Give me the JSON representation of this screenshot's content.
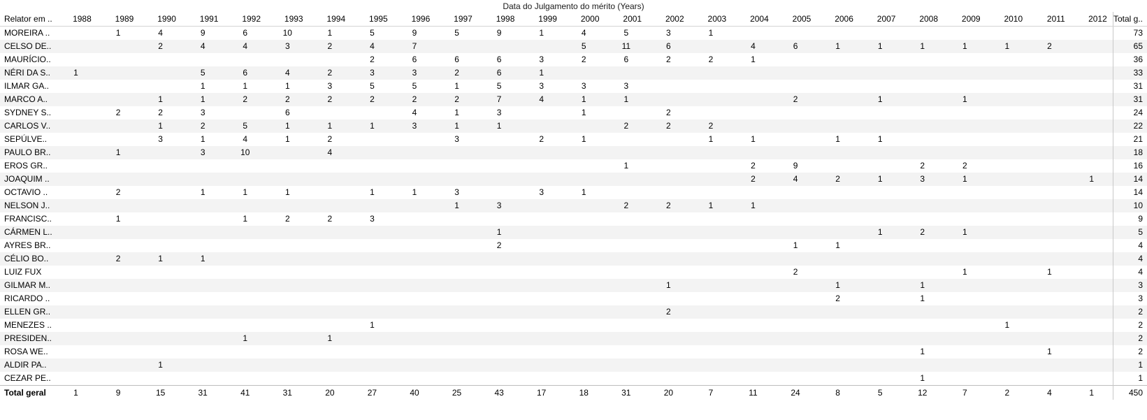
{
  "chart_data": {
    "type": "table",
    "title": "Data do Julgamento do mérito (Years)",
    "row_header": "Relator em ..",
    "total_header": "Total g..",
    "total_row_label": "Total geral",
    "columns": [
      "1988",
      "1989",
      "1990",
      "1991",
      "1992",
      "1993",
      "1994",
      "1995",
      "1996",
      "1997",
      "1998",
      "1999",
      "2000",
      "2001",
      "2002",
      "2003",
      "2004",
      "2005",
      "2006",
      "2007",
      "2008",
      "2009",
      "2010",
      "2011",
      "2012"
    ],
    "rows": [
      {
        "label": "MOREIRA ..",
        "values": [
          null,
          1,
          4,
          9,
          6,
          10,
          1,
          5,
          9,
          5,
          9,
          1,
          4,
          5,
          3,
          1,
          null,
          null,
          null,
          null,
          null,
          null,
          null,
          null,
          null
        ],
        "total": 73
      },
      {
        "label": "CELSO DE..",
        "values": [
          null,
          null,
          2,
          4,
          4,
          3,
          2,
          4,
          7,
          null,
          null,
          null,
          5,
          11,
          6,
          null,
          4,
          6,
          1,
          1,
          1,
          1,
          1,
          2,
          null
        ],
        "total": 65
      },
      {
        "label": "MAURÍCIO..",
        "values": [
          null,
          null,
          null,
          null,
          null,
          null,
          null,
          2,
          6,
          6,
          6,
          3,
          2,
          6,
          2,
          2,
          1,
          null,
          null,
          null,
          null,
          null,
          null,
          null,
          null
        ],
        "total": 36
      },
      {
        "label": "NÉRI DA S..",
        "values": [
          1,
          null,
          null,
          5,
          6,
          4,
          2,
          3,
          3,
          2,
          6,
          1,
          null,
          null,
          null,
          null,
          null,
          null,
          null,
          null,
          null,
          null,
          null,
          null,
          null
        ],
        "total": 33
      },
      {
        "label": "ILMAR GA..",
        "values": [
          null,
          null,
          null,
          1,
          1,
          1,
          3,
          5,
          5,
          1,
          5,
          3,
          3,
          3,
          null,
          null,
          null,
          null,
          null,
          null,
          null,
          null,
          null,
          null,
          null
        ],
        "total": 31
      },
      {
        "label": "MARCO A..",
        "values": [
          null,
          null,
          1,
          1,
          2,
          2,
          2,
          2,
          2,
          2,
          7,
          4,
          1,
          1,
          null,
          null,
          null,
          2,
          null,
          1,
          null,
          1,
          null,
          null,
          null
        ],
        "total": 31
      },
      {
        "label": "SYDNEY S..",
        "values": [
          null,
          2,
          2,
          3,
          null,
          6,
          null,
          null,
          4,
          1,
          3,
          null,
          1,
          null,
          2,
          null,
          null,
          null,
          null,
          null,
          null,
          null,
          null,
          null,
          null
        ],
        "total": 24
      },
      {
        "label": "CARLOS V..",
        "values": [
          null,
          null,
          1,
          2,
          5,
          1,
          1,
          1,
          3,
          1,
          1,
          null,
          null,
          2,
          2,
          2,
          null,
          null,
          null,
          null,
          null,
          null,
          null,
          null,
          null
        ],
        "total": 22
      },
      {
        "label": "SEPÚLVE..",
        "values": [
          null,
          null,
          3,
          1,
          4,
          1,
          2,
          null,
          null,
          3,
          null,
          2,
          1,
          null,
          null,
          1,
          1,
          null,
          1,
          1,
          null,
          null,
          null,
          null,
          null
        ],
        "total": 21
      },
      {
        "label": "PAULO BR..",
        "values": [
          null,
          1,
          null,
          3,
          10,
          null,
          4,
          null,
          null,
          null,
          null,
          null,
          null,
          null,
          null,
          null,
          null,
          null,
          null,
          null,
          null,
          null,
          null,
          null,
          null
        ],
        "total": 18
      },
      {
        "label": "EROS GR..",
        "values": [
          null,
          null,
          null,
          null,
          null,
          null,
          null,
          null,
          null,
          null,
          null,
          null,
          null,
          1,
          null,
          null,
          2,
          9,
          null,
          null,
          2,
          2,
          null,
          null,
          null
        ],
        "total": 16
      },
      {
        "label": "JOAQUIM ..",
        "values": [
          null,
          null,
          null,
          null,
          null,
          null,
          null,
          null,
          null,
          null,
          null,
          null,
          null,
          null,
          null,
          null,
          2,
          4,
          2,
          1,
          3,
          1,
          null,
          null,
          1
        ],
        "total": 14
      },
      {
        "label": "OCTAVIO ..",
        "values": [
          null,
          2,
          null,
          1,
          1,
          1,
          null,
          1,
          1,
          3,
          null,
          3,
          1,
          null,
          null,
          null,
          null,
          null,
          null,
          null,
          null,
          null,
          null,
          null,
          null
        ],
        "total": 14
      },
      {
        "label": "NELSON J..",
        "values": [
          null,
          null,
          null,
          null,
          null,
          null,
          null,
          null,
          null,
          1,
          3,
          null,
          null,
          2,
          2,
          1,
          1,
          null,
          null,
          null,
          null,
          null,
          null,
          null,
          null
        ],
        "total": 10
      },
      {
        "label": "FRANCISC..",
        "values": [
          null,
          1,
          null,
          null,
          1,
          2,
          2,
          3,
          null,
          null,
          null,
          null,
          null,
          null,
          null,
          null,
          null,
          null,
          null,
          null,
          null,
          null,
          null,
          null,
          null
        ],
        "total": 9
      },
      {
        "label": "CÁRMEN L..",
        "values": [
          null,
          null,
          null,
          null,
          null,
          null,
          null,
          null,
          null,
          null,
          1,
          null,
          null,
          null,
          null,
          null,
          null,
          null,
          null,
          1,
          2,
          1,
          null,
          null,
          null
        ],
        "total": 5
      },
      {
        "label": "AYRES BR..",
        "values": [
          null,
          null,
          null,
          null,
          null,
          null,
          null,
          null,
          null,
          null,
          2,
          null,
          null,
          null,
          null,
          null,
          null,
          1,
          1,
          null,
          null,
          null,
          null,
          null,
          null
        ],
        "total": 4
      },
      {
        "label": "CÉLIO BO..",
        "values": [
          null,
          2,
          1,
          1,
          null,
          null,
          null,
          null,
          null,
          null,
          null,
          null,
          null,
          null,
          null,
          null,
          null,
          null,
          null,
          null,
          null,
          null,
          null,
          null,
          null
        ],
        "total": 4
      },
      {
        "label": "LUIZ FUX",
        "values": [
          null,
          null,
          null,
          null,
          null,
          null,
          null,
          null,
          null,
          null,
          null,
          null,
          null,
          null,
          null,
          null,
          null,
          2,
          null,
          null,
          null,
          1,
          null,
          1,
          null
        ],
        "total": 4
      },
      {
        "label": "GILMAR M..",
        "values": [
          null,
          null,
          null,
          null,
          null,
          null,
          null,
          null,
          null,
          null,
          null,
          null,
          null,
          null,
          1,
          null,
          null,
          null,
          1,
          null,
          1,
          null,
          null,
          null,
          null
        ],
        "total": 3
      },
      {
        "label": "RICARDO ..",
        "values": [
          null,
          null,
          null,
          null,
          null,
          null,
          null,
          null,
          null,
          null,
          null,
          null,
          null,
          null,
          null,
          null,
          null,
          null,
          2,
          null,
          1,
          null,
          null,
          null,
          null
        ],
        "total": 3
      },
      {
        "label": "ELLEN GR..",
        "values": [
          null,
          null,
          null,
          null,
          null,
          null,
          null,
          null,
          null,
          null,
          null,
          null,
          null,
          null,
          2,
          null,
          null,
          null,
          null,
          null,
          null,
          null,
          null,
          null,
          null
        ],
        "total": 2
      },
      {
        "label": "MENEZES ..",
        "values": [
          null,
          null,
          null,
          null,
          null,
          null,
          null,
          1,
          null,
          null,
          null,
          null,
          null,
          null,
          null,
          null,
          null,
          null,
          null,
          null,
          null,
          null,
          1,
          null,
          null
        ],
        "total": 2
      },
      {
        "label": "PRESIDEN..",
        "values": [
          null,
          null,
          null,
          null,
          1,
          null,
          1,
          null,
          null,
          null,
          null,
          null,
          null,
          null,
          null,
          null,
          null,
          null,
          null,
          null,
          null,
          null,
          null,
          null,
          null
        ],
        "total": 2
      },
      {
        "label": "ROSA WE..",
        "values": [
          null,
          null,
          null,
          null,
          null,
          null,
          null,
          null,
          null,
          null,
          null,
          null,
          null,
          null,
          null,
          null,
          null,
          null,
          null,
          null,
          1,
          null,
          null,
          1,
          null
        ],
        "total": 2
      },
      {
        "label": "ALDIR PA..",
        "values": [
          null,
          null,
          1,
          null,
          null,
          null,
          null,
          null,
          null,
          null,
          null,
          null,
          null,
          null,
          null,
          null,
          null,
          null,
          null,
          null,
          null,
          null,
          null,
          null,
          null
        ],
        "total": 1
      },
      {
        "label": "CEZAR PE..",
        "values": [
          null,
          null,
          null,
          null,
          null,
          null,
          null,
          null,
          null,
          null,
          null,
          null,
          null,
          null,
          null,
          null,
          null,
          null,
          null,
          null,
          1,
          null,
          null,
          null,
          null
        ],
        "total": 1
      }
    ],
    "column_totals": [
      1,
      9,
      15,
      31,
      41,
      31,
      20,
      27,
      40,
      25,
      43,
      17,
      18,
      31,
      20,
      7,
      11,
      24,
      8,
      5,
      12,
      7,
      2,
      4,
      1
    ],
    "grand_total": 450
  }
}
